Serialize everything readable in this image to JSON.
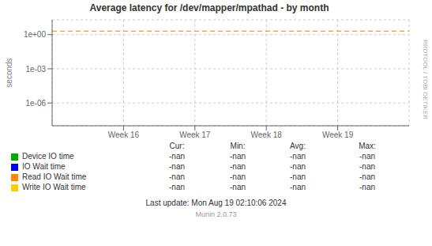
{
  "chart_data": {
    "type": "line",
    "title": "Average latency for /dev/mapper/mpathad - by month",
    "ylabel": "seconds",
    "log": "y",
    "grid": true,
    "legend": "bottom",
    "xlim": [
      0,
      1.0
    ],
    "xticks": [
      {
        "value": 0.2,
        "label": "Week 16"
      },
      {
        "value": 0.4,
        "label": "Week 17"
      },
      {
        "value": 0.6,
        "label": "Week 18"
      },
      {
        "value": 0.8,
        "label": "Week 19"
      }
    ],
    "ylim": [
      1e-08,
      19.952623149688797
    ],
    "yticks": [
      {
        "value": 1e-06,
        "label": "1e-06"
      },
      {
        "value": 0.001,
        "label": "1e-03"
      },
      {
        "value": 1.0,
        "label": "1e+00"
      }
    ],
    "reference_lines": [
      {
        "value": 2.0,
        "color": "#ff8800",
        "line_style": "dashed"
      }
    ],
    "legend_table": {
      "columns": [
        "Cur:",
        "Min:",
        "Avg:",
        "Max:"
      ]
    },
    "series": [
      {
        "name": "Device IO time",
        "color": "#00aa00",
        "values": [],
        "stats": [
          "-nan",
          "-nan",
          "-nan",
          "-nan"
        ]
      },
      {
        "name": "IO Wait time",
        "color": "#0000ff",
        "values": [],
        "stats": [
          "-nan",
          "-nan",
          "-nan",
          "-nan"
        ]
      },
      {
        "name": "Read IO Wait time",
        "color": "#ff8800",
        "values": [],
        "stats": [
          "-nan",
          "-nan",
          "-nan",
          "-nan"
        ]
      },
      {
        "name": "Write IO Wait time",
        "color": "#ffcc00",
        "values": [],
        "stats": [
          "-nan",
          "-nan",
          "-nan",
          "-nan"
        ]
      }
    ],
    "annotations": [
      "RRDTOOL / TOBI OETIKER",
      "Last update: Mon Aug 19 02:10:06 2024",
      "Munin 2.0.73"
    ]
  }
}
